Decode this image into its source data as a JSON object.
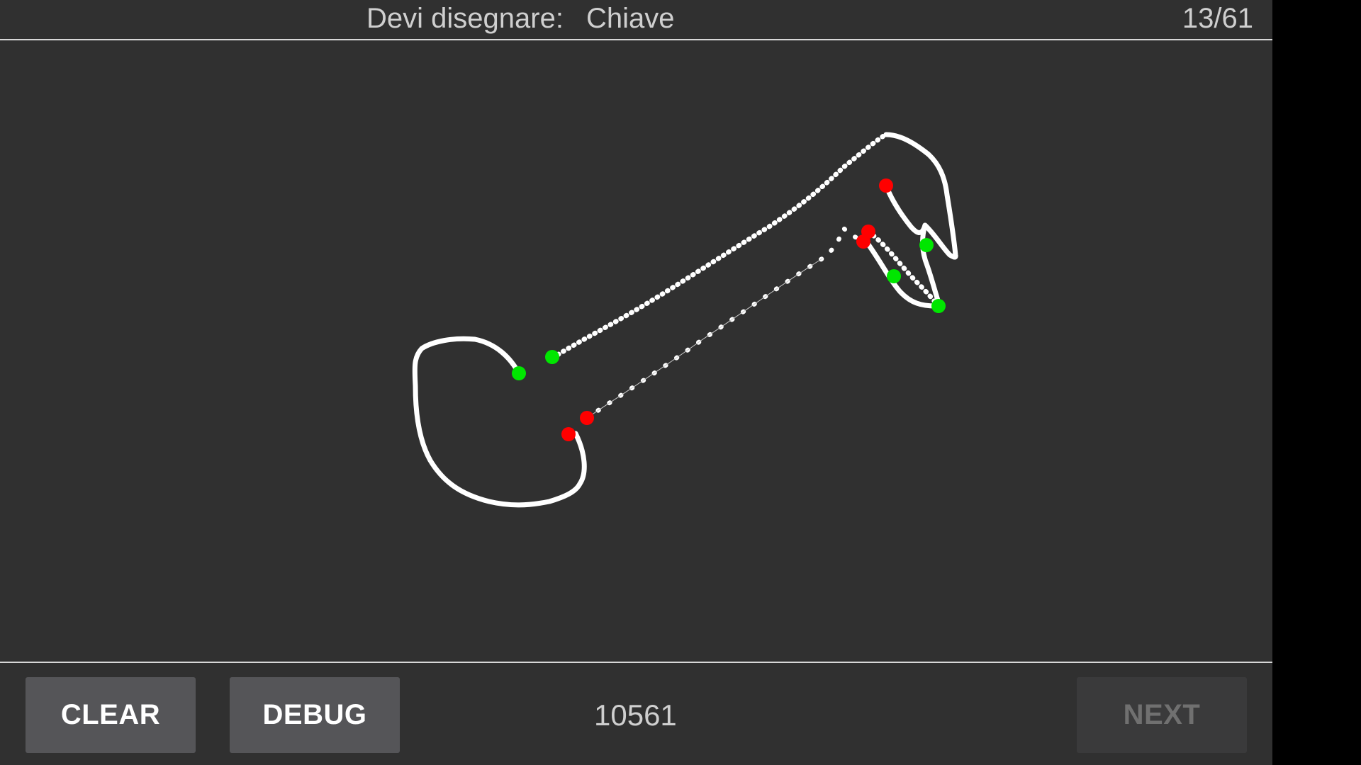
{
  "header": {
    "prompt_label": "Devi disegnare:",
    "target_word": "Chiave",
    "progress": "13/61"
  },
  "footer": {
    "clear_label": "CLEAR",
    "debug_label": "DEBUG",
    "score": "10561",
    "next_label": "NEXT"
  },
  "colors": {
    "background": "#303030",
    "stroke": "#ffffff",
    "stroke_start": "#00e600",
    "stroke_end": "#ff0000",
    "button": "#555558",
    "button_disabled": "#3a3a3b"
  },
  "icons": [
    "stroke-start-dot",
    "stroke-end-dot"
  ]
}
